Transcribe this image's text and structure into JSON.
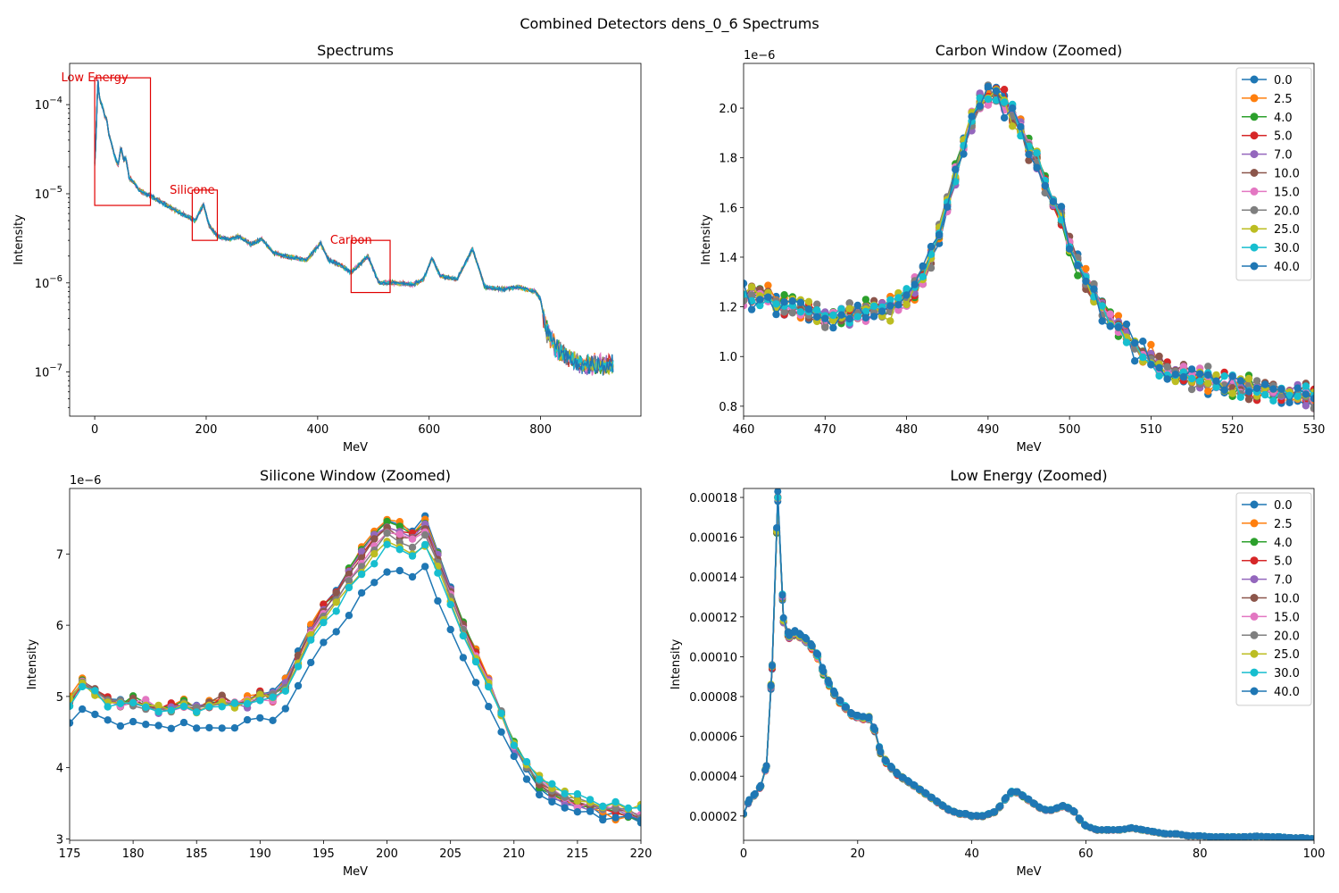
{
  "figure": {
    "suptitle": "Combined Detectors dens_0_6 Spectrums"
  },
  "series_names": [
    "0.0",
    "2.5",
    "4.0",
    "5.0",
    "7.0",
    "10.0",
    "15.0",
    "20.0",
    "25.0",
    "30.0",
    "40.0"
  ],
  "series_colors": [
    "#1f77b4",
    "#ff7f0e",
    "#2ca02c",
    "#d62728",
    "#9467bd",
    "#8c564b",
    "#e377c2",
    "#7f7f7f",
    "#bcbd22",
    "#17becf",
    "#1f77b4"
  ],
  "chart_data": [
    {
      "id": "spectrums",
      "type": "line",
      "title": "Spectrums",
      "xlabel": "MeV",
      "ylabel": "Intensity",
      "xlim": [
        -45,
        980
      ],
      "ylim": [
        3.2e-08,
        0.00029
      ],
      "yscale": "log",
      "xticks": [
        0,
        200,
        400,
        600,
        800
      ],
      "yticks": [
        {
          "value": 1e-07,
          "base": "10",
          "exp": "−7"
        },
        {
          "value": 1e-06,
          "base": "10",
          "exp": "−6"
        },
        {
          "value": 1e-05,
          "base": "10",
          "exp": "−5"
        },
        {
          "value": 0.0001,
          "base": "10",
          "exp": "−4"
        }
      ],
      "legend": "none",
      "annotations": [
        {
          "label": "Low Energy",
          "x0": 0,
          "x1": 100,
          "y0": 7.4e-06,
          "y1": 0.0002
        },
        {
          "label": "Silicone",
          "x0": 175,
          "x1": 220,
          "y0": 3e-06,
          "y1": 1.1e-05
        },
        {
          "label": "Carbon",
          "x0": 460,
          "x1": 530,
          "y0": 7.8e-07,
          "y1": 3e-06
        }
      ],
      "series_curve": [
        [
          0,
          2.2e-05
        ],
        [
          2,
          3.5e-05
        ],
        [
          4,
          0.0001
        ],
        [
          6,
          0.000185
        ],
        [
          8,
          0.000125
        ],
        [
          10,
          0.00011
        ],
        [
          14,
          9.5e-05
        ],
        [
          18,
          7.4e-05
        ],
        [
          22,
          6.8e-05
        ],
        [
          25,
          4.7e-05
        ],
        [
          30,
          3.7e-05
        ],
        [
          36,
          2.6e-05
        ],
        [
          42,
          2.1e-05
        ],
        [
          47,
          3.3e-05
        ],
        [
          52,
          2.4e-05
        ],
        [
          56,
          2.5e-05
        ],
        [
          62,
          1.5e-05
        ],
        [
          70,
          1.35e-05
        ],
        [
          80,
          1.1e-05
        ],
        [
          90,
          1e-05
        ],
        [
          100,
          9.5e-06
        ],
        [
          120,
          8e-06
        ],
        [
          140,
          6.8e-06
        ],
        [
          160,
          5.8e-06
        ],
        [
          180,
          5e-06
        ],
        [
          195,
          7.6e-06
        ],
        [
          205,
          4.5e-06
        ],
        [
          220,
          3.3e-06
        ],
        [
          240,
          3.1e-06
        ],
        [
          260,
          3.3e-06
        ],
        [
          280,
          2.7e-06
        ],
        [
          300,
          3.1e-06
        ],
        [
          320,
          2.2e-06
        ],
        [
          340,
          2e-06
        ],
        [
          360,
          1.9e-06
        ],
        [
          380,
          1.8e-06
        ],
        [
          405,
          2.8e-06
        ],
        [
          420,
          1.8e-06
        ],
        [
          440,
          1.6e-06
        ],
        [
          460,
          1.3e-06
        ],
        [
          490,
          2e-06
        ],
        [
          510,
          1e-06
        ],
        [
          540,
          1e-06
        ],
        [
          570,
          9.5e-07
        ],
        [
          590,
          1.1e-06
        ],
        [
          605,
          1.9e-06
        ],
        [
          620,
          1.2e-06
        ],
        [
          650,
          1.1e-06
        ],
        [
          678,
          2.4e-06
        ],
        [
          700,
          9e-07
        ],
        [
          730,
          8.5e-07
        ],
        [
          760,
          9e-07
        ],
        [
          790,
          8e-07
        ],
        [
          800,
          6.5e-07
        ],
        [
          810,
          3e-07
        ],
        [
          830,
          1.8e-07
        ],
        [
          850,
          1.4e-07
        ],
        [
          880,
          1.2e-07
        ],
        [
          910,
          1.2e-07
        ],
        [
          930,
          1.2e-07
        ]
      ]
    },
    {
      "id": "carbon",
      "type": "line",
      "title": "Carbon Window (Zoomed)",
      "xlabel": "MeV",
      "ylabel": "Intensity",
      "xlim": [
        460,
        530
      ],
      "ylim": [
        0.76,
        2.18
      ],
      "yscale": "linear",
      "yoffset_label": "1e−6",
      "xticks": [
        460,
        470,
        480,
        490,
        500,
        510,
        520,
        530
      ],
      "yticks": [
        0.8,
        1.0,
        1.2,
        1.4,
        1.6,
        1.8,
        2.0
      ],
      "ytick_labels": [
        "0.8",
        "1.0",
        "1.2",
        "1.4",
        "1.6",
        "1.8",
        "2.0"
      ],
      "legend": "top-right",
      "x_start": 460,
      "x_step": 1,
      "base": [
        1.25,
        1.25,
        1.24,
        1.23,
        1.22,
        1.21,
        1.2,
        1.19,
        1.18,
        1.17,
        1.16,
        1.16,
        1.16,
        1.17,
        1.17,
        1.18,
        1.18,
        1.19,
        1.2,
        1.22,
        1.24,
        1.27,
        1.32,
        1.4,
        1.5,
        1.6,
        1.72,
        1.85,
        1.95,
        2.02,
        2.06,
        2.05,
        2.02,
        1.97,
        1.92,
        1.85,
        1.78,
        1.7,
        1.62,
        1.55,
        1.45,
        1.38,
        1.3,
        1.25,
        1.2,
        1.16,
        1.12,
        1.08,
        1.04,
        1.01,
        0.99,
        0.97,
        0.95,
        0.94,
        0.93,
        0.92,
        0.91,
        0.9,
        0.9,
        0.89,
        0.89,
        0.88,
        0.88,
        0.87,
        0.87,
        0.86,
        0.86,
        0.85,
        0.85,
        0.84,
        0.84
      ],
      "noise": 0.07
    },
    {
      "id": "silicone",
      "type": "line",
      "title": "Silicone Window (Zoomed)",
      "xlabel": "MeV",
      "ylabel": "Intensity",
      "xlim": [
        175,
        220
      ],
      "ylim": [
        2.98,
        7.92
      ],
      "yscale": "linear",
      "yoffset_label": "1e−6",
      "xticks": [
        175,
        180,
        185,
        190,
        195,
        200,
        205,
        210,
        215,
        220
      ],
      "yticks": [
        3,
        4,
        5,
        6,
        7
      ],
      "ytick_labels": [
        "3",
        "4",
        "5",
        "6",
        "7"
      ],
      "legend": "none",
      "x_start": 175,
      "x_step": 1,
      "base": [
        4.95,
        5.2,
        5.1,
        4.95,
        4.9,
        4.95,
        4.9,
        4.85,
        4.85,
        4.9,
        4.85,
        4.9,
        4.95,
        4.9,
        4.95,
        5.05,
        5.0,
        5.2,
        5.6,
        6.0,
        6.3,
        6.5,
        6.8,
        7.05,
        7.3,
        7.5,
        7.45,
        7.35,
        7.5,
        7.05,
        6.55,
        6.05,
        5.65,
        5.25,
        4.75,
        4.3,
        4.0,
        3.75,
        3.6,
        3.5,
        3.45,
        3.4,
        3.35,
        3.35,
        3.3,
        3.25
      ],
      "peak_scale": [
        1.0,
        0.99,
        0.98,
        0.97,
        0.96,
        0.95,
        0.93,
        0.91,
        0.88,
        0.86,
        0.83
      ],
      "noise": 0.1
    },
    {
      "id": "low_energy",
      "type": "line",
      "title": "Low Energy (Zoomed)",
      "xlabel": "MeV",
      "ylabel": "Intensity",
      "xlim": [
        0,
        100
      ],
      "ylim": [
        7.8e-06,
        0.0001845
      ],
      "yscale": "linear",
      "xticks": [
        0,
        20,
        40,
        60,
        80,
        100
      ],
      "yticks": [
        2e-05,
        4e-05,
        6e-05,
        8e-05,
        0.0001,
        0.00012,
        0.00014,
        0.00016,
        0.00018
      ],
      "ytick_labels": [
        "0.00002",
        "0.00004",
        "0.00006",
        "0.00008",
        "0.00010",
        "0.00012",
        "0.00014",
        "0.00016",
        "0.00018"
      ],
      "legend": "top-right",
      "curve_points": [
        [
          0,
          2.1e-05
        ],
        [
          1,
          2.8e-05
        ],
        [
          2,
          3.1e-05
        ],
        [
          3,
          3.5e-05
        ],
        [
          4,
          4.5e-05
        ],
        [
          5,
          9.5e-05
        ],
        [
          6,
          0.00018
        ],
        [
          7,
          0.000118
        ],
        [
          8,
          0.00011
        ],
        [
          9,
          0.000112
        ],
        [
          10,
          0.00011
        ],
        [
          11,
          0.000108
        ],
        [
          12,
          0.000105
        ],
        [
          13,
          0.0001
        ],
        [
          14,
          9.2e-05
        ],
        [
          15,
          8.6e-05
        ],
        [
          16,
          8.1e-05
        ],
        [
          17,
          7.7e-05
        ],
        [
          18,
          7.4e-05
        ],
        [
          19,
          7.1e-05
        ],
        [
          20,
          7e-05
        ],
        [
          21,
          6.9e-05
        ],
        [
          22,
          6.9e-05
        ],
        [
          23,
          6.3e-05
        ],
        [
          24,
          5.2e-05
        ],
        [
          25,
          4.7e-05
        ],
        [
          26,
          4.4e-05
        ],
        [
          27,
          4.1e-05
        ],
        [
          28,
          3.9e-05
        ],
        [
          29,
          3.7e-05
        ],
        [
          30,
          3.5e-05
        ],
        [
          31,
          3.3e-05
        ],
        [
          32,
          3.1e-05
        ],
        [
          33,
          2.9e-05
        ],
        [
          34,
          2.7e-05
        ],
        [
          35,
          2.5e-05
        ],
        [
          36,
          2.3e-05
        ],
        [
          37,
          2.2e-05
        ],
        [
          38,
          2.1e-05
        ],
        [
          39,
          2.1e-05
        ],
        [
          40,
          2e-05
        ],
        [
          41,
          2e-05
        ],
        [
          42,
          2e-05
        ],
        [
          43,
          2.1e-05
        ],
        [
          44,
          2.2e-05
        ],
        [
          45,
          2.5e-05
        ],
        [
          46,
          2.9e-05
        ],
        [
          47,
          3.2e-05
        ],
        [
          48,
          3.2e-05
        ],
        [
          49,
          3e-05
        ],
        [
          50,
          2.8e-05
        ],
        [
          51,
          2.6e-05
        ],
        [
          52,
          2.4e-05
        ],
        [
          53,
          2.3e-05
        ],
        [
          54,
          2.3e-05
        ],
        [
          55,
          2.4e-05
        ],
        [
          56,
          2.5e-05
        ],
        [
          57,
          2.4e-05
        ],
        [
          58,
          2.2e-05
        ],
        [
          59,
          1.8e-05
        ],
        [
          60,
          1.5e-05
        ],
        [
          62,
          1.3e-05
        ],
        [
          64,
          1.3e-05
        ],
        [
          66,
          1.3e-05
        ],
        [
          68,
          1.4e-05
        ],
        [
          70,
          1.3e-05
        ],
        [
          72,
          1.2e-05
        ],
        [
          74,
          1.1e-05
        ],
        [
          76,
          1.1e-05
        ],
        [
          78,
          1e-05
        ],
        [
          80,
          1e-05
        ],
        [
          82,
          9.5e-06
        ],
        [
          84,
          9.5e-06
        ],
        [
          86,
          9.5e-06
        ],
        [
          88,
          9.5e-06
        ],
        [
          90,
          9.8e-06
        ],
        [
          92,
          9.5e-06
        ],
        [
          94,
          9.5e-06
        ],
        [
          96,
          9e-06
        ],
        [
          98,
          9e-06
        ],
        [
          100,
          8.5e-06
        ]
      ]
    }
  ]
}
